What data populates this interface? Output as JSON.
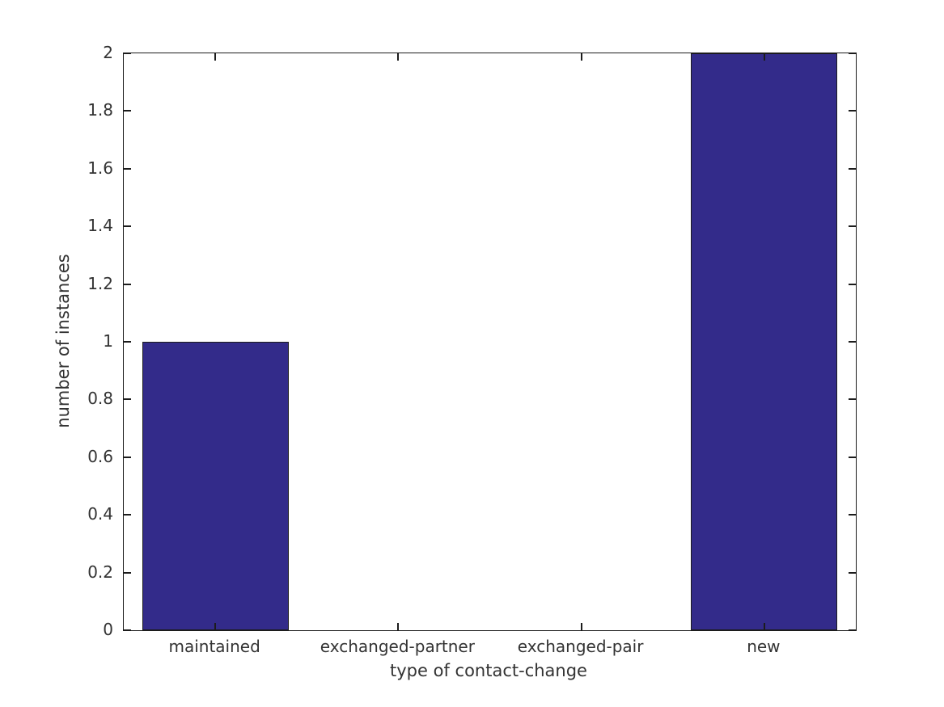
{
  "chart_data": {
    "type": "bar",
    "categories": [
      "maintained",
      "exchanged-partner",
      "exchanged-pair",
      "new"
    ],
    "values": [
      1,
      0,
      0,
      2
    ],
    "xlabel": "type of contact-change",
    "ylabel": "number of instances",
    "ylim": [
      0,
      2
    ],
    "ytick_step": 0.2,
    "ytick_labels": [
      "0",
      "0.2",
      "0.4",
      "0.6",
      "0.8",
      "1",
      "1.2",
      "1.4",
      "1.6",
      "1.8",
      "2"
    ],
    "bar_width_fraction": 0.8,
    "grid": false,
    "legend": "none",
    "tick_style": "inward-mirrored",
    "colors": {
      "bar_fill": "#332b8a",
      "bar_edge": "#1c1c1c",
      "axis": "#1c1c1c",
      "text": "#333333",
      "background": "#ffffff"
    }
  }
}
